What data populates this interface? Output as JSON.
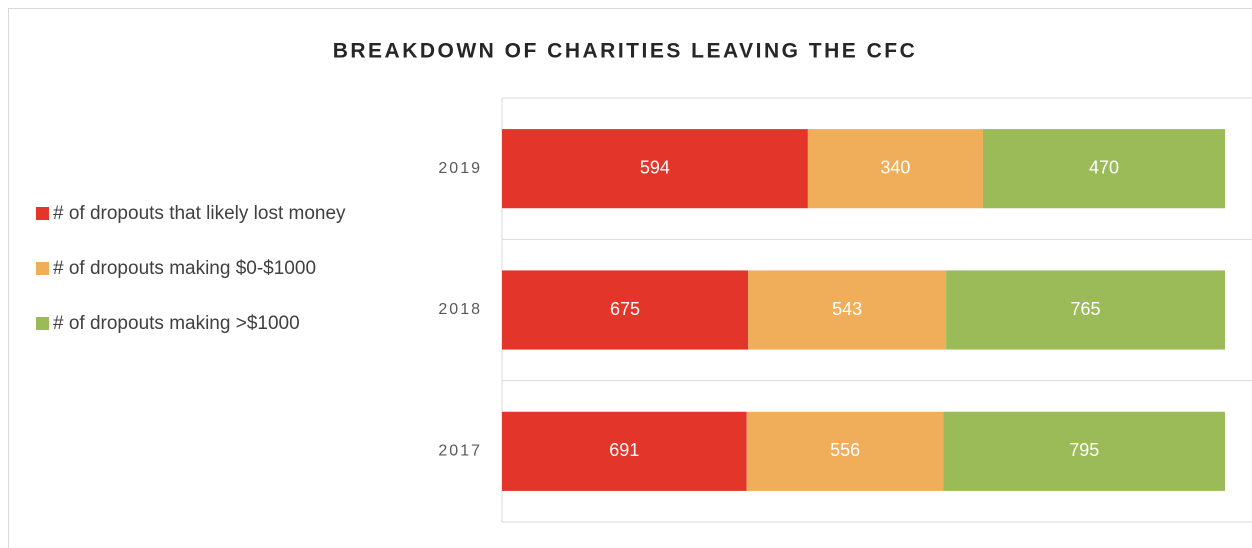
{
  "chart_data": {
    "type": "bar",
    "orientation": "horizontal",
    "stacking": "percent",
    "title": "BREAKDOWN OF CHARITIES LEAVING THE CFC",
    "categories": [
      "2019",
      "2018",
      "2017"
    ],
    "series": [
      {
        "name": "# of dropouts that likely lost money",
        "color": "#e4352a",
        "values": [
          594,
          675,
          691
        ]
      },
      {
        "name": "# of dropouts making $0-$1000",
        "color": "#f0ae5a",
        "values": [
          340,
          543,
          556
        ]
      },
      {
        "name": "# of dropouts making >$1000",
        "color": "#9bbb59",
        "values": [
          470,
          765,
          795
        ]
      }
    ],
    "legend": "left"
  }
}
